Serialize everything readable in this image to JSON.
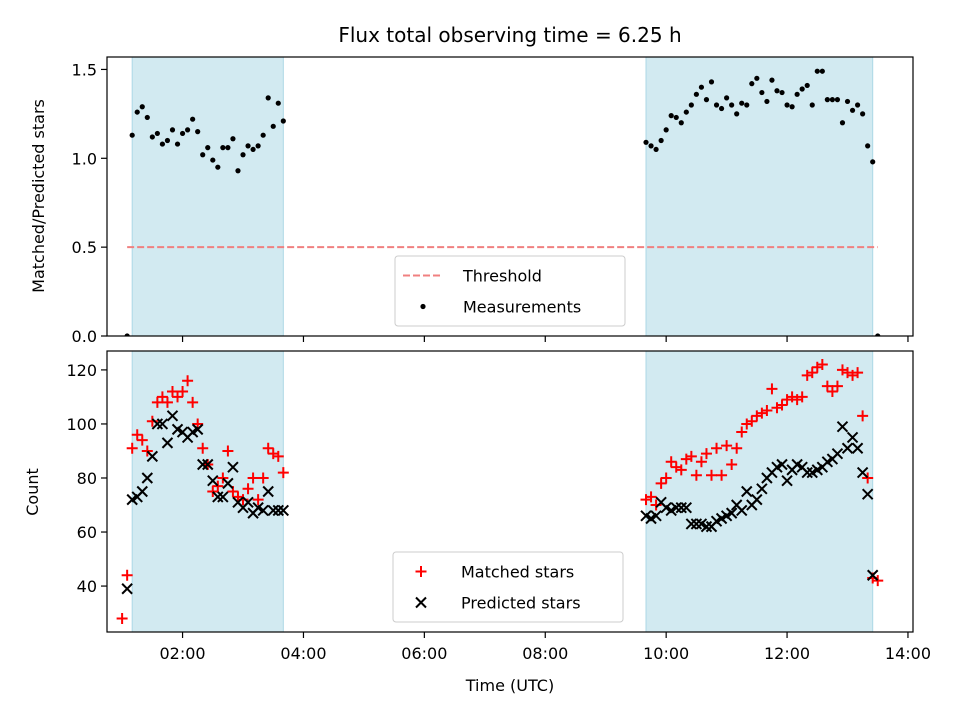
{
  "chart_data": {
    "type": "scatter",
    "title": "Flux total observing time = 6.25 h",
    "xlabel": "Time (UTC)",
    "x_ticks": [
      "02:00",
      "04:00",
      "06:00",
      "08:00",
      "10:00",
      "12:00",
      "14:00"
    ],
    "xlim": [
      "00:45",
      "14:05"
    ],
    "shaded_intervals": [
      [
        "01:10",
        "03:40"
      ],
      [
        "09:40",
        "13:25"
      ]
    ],
    "colors": {
      "shade": "#add8e6",
      "threshold": "#f08080",
      "matched": "#ff0000",
      "predicted": "#000000",
      "measurements": "#000000"
    },
    "panels": [
      {
        "ylabel": "Matched/Predicted stars",
        "ylim": [
          0,
          1.57
        ],
        "y_ticks": [
          "0.0",
          "0.5",
          "1.0",
          "1.5"
        ],
        "legend_position": "lower center",
        "threshold": {
          "name": "Threshold",
          "value": 0.5,
          "x_range": [
            "01:05",
            "13:30"
          ]
        },
        "series": [
          {
            "name": "Measurements",
            "marker": "dot",
            "x": [
              "01:05",
              "01:10",
              "01:15",
              "01:20",
              "01:25",
              "01:30",
              "01:35",
              "01:40",
              "01:45",
              "01:50",
              "01:55",
              "02:00",
              "02:05",
              "02:10",
              "02:15",
              "02:20",
              "02:25",
              "02:30",
              "02:35",
              "02:40",
              "02:45",
              "02:50",
              "02:55",
              "03:00",
              "03:05",
              "03:10",
              "03:15",
              "03:20",
              "03:25",
              "03:30",
              "03:35",
              "03:40",
              "09:40",
              "09:45",
              "09:50",
              "09:55",
              "10:00",
              "10:05",
              "10:10",
              "10:15",
              "10:20",
              "10:25",
              "10:30",
              "10:35",
              "10:40",
              "10:45",
              "10:50",
              "10:55",
              "11:00",
              "11:05",
              "11:10",
              "11:15",
              "11:20",
              "11:25",
              "11:30",
              "11:35",
              "11:40",
              "11:45",
              "11:50",
              "11:55",
              "12:00",
              "12:05",
              "12:10",
              "12:15",
              "12:20",
              "12:25",
              "12:30",
              "12:35",
              "12:40",
              "12:45",
              "12:50",
              "12:55",
              "13:00",
              "13:05",
              "13:10",
              "13:15",
              "13:20",
              "13:25",
              "13:30"
            ],
            "y": [
              0.0,
              1.13,
              1.26,
              1.29,
              1.23,
              1.12,
              1.14,
              1.08,
              1.1,
              1.16,
              1.08,
              1.14,
              1.16,
              1.22,
              1.15,
              1.02,
              1.06,
              0.99,
              0.95,
              1.06,
              1.06,
              1.11,
              0.93,
              1.02,
              1.07,
              1.05,
              1.07,
              1.13,
              1.34,
              1.18,
              1.31,
              1.21,
              1.09,
              1.07,
              1.05,
              1.1,
              1.16,
              1.24,
              1.23,
              1.2,
              1.26,
              1.3,
              1.36,
              1.4,
              1.33,
              1.43,
              1.3,
              1.28,
              1.34,
              1.3,
              1.25,
              1.31,
              1.3,
              1.42,
              1.45,
              1.37,
              1.32,
              1.44,
              1.38,
              1.37,
              1.3,
              1.29,
              1.36,
              1.39,
              1.41,
              1.3,
              1.49,
              1.49,
              1.33,
              1.33,
              1.33,
              1.2,
              1.32,
              1.27,
              1.3,
              1.25,
              1.07,
              0.98,
              0.0
            ]
          }
        ]
      },
      {
        "ylabel": "Count",
        "ylim": [
          23,
          127
        ],
        "y_ticks": [
          "40",
          "60",
          "80",
          "100",
          "120"
        ],
        "legend_position": "lower center",
        "series": [
          {
            "name": "Matched stars",
            "marker": "plus",
            "x": [
              "01:00",
              "01:05",
              "01:10",
              "01:15",
              "01:20",
              "01:25",
              "01:30",
              "01:35",
              "01:40",
              "01:45",
              "01:50",
              "01:55",
              "02:00",
              "02:05",
              "02:10",
              "02:15",
              "02:20",
              "02:25",
              "02:30",
              "02:35",
              "02:40",
              "02:45",
              "02:50",
              "02:55",
              "03:00",
              "03:05",
              "03:10",
              "03:15",
              "03:20",
              "03:25",
              "03:30",
              "03:35",
              "03:40",
              "09:40",
              "09:45",
              "09:50",
              "09:55",
              "10:00",
              "10:05",
              "10:10",
              "10:15",
              "10:20",
              "10:25",
              "10:30",
              "10:35",
              "10:40",
              "10:45",
              "10:50",
              "10:55",
              "11:00",
              "11:05",
              "11:10",
              "11:15",
              "11:20",
              "11:25",
              "11:30",
              "11:35",
              "11:40",
              "11:45",
              "11:50",
              "11:55",
              "12:00",
              "12:05",
              "12:10",
              "12:15",
              "12:20",
              "12:25",
              "12:30",
              "12:35",
              "12:40",
              "12:45",
              "12:50",
              "12:55",
              "13:00",
              "13:05",
              "13:10",
              "13:15",
              "13:20",
              "13:25",
              "13:30"
            ],
            "y": [
              28,
              44,
              91,
              96,
              94,
              90,
              101,
              108,
              110,
              108,
              112,
              110,
              112,
              116,
              108,
              100,
              91,
              85,
              75,
              77,
              80,
              90,
              75,
              73,
              72,
              76,
              80,
              72,
              80,
              91,
              89,
              88,
              82,
              72,
              73,
              70,
              78,
              80,
              86,
              84,
              83,
              87,
              88,
              81,
              86,
              89,
              81,
              91,
              81,
              92,
              85,
              91,
              97,
              100,
              101,
              103,
              104,
              105,
              113,
              106,
              107,
              109,
              110,
              109,
              110,
              118,
              119,
              121,
              122,
              114,
              112,
              114,
              120,
              119,
              118,
              119,
              103,
              80,
              43,
              42
            ]
          },
          {
            "name": "Predicted stars",
            "marker": "x",
            "x": [
              "01:05",
              "01:10",
              "01:15",
              "01:20",
              "01:25",
              "01:30",
              "01:35",
              "01:40",
              "01:45",
              "01:50",
              "01:55",
              "02:00",
              "02:05",
              "02:10",
              "02:15",
              "02:20",
              "02:25",
              "02:30",
              "02:35",
              "02:40",
              "02:45",
              "02:50",
              "02:55",
              "03:00",
              "03:05",
              "03:10",
              "03:15",
              "03:20",
              "03:25",
              "03:30",
              "03:35",
              "03:40",
              "09:40",
              "09:45",
              "09:50",
              "09:55",
              "10:00",
              "10:05",
              "10:10",
              "10:15",
              "10:20",
              "10:25",
              "10:30",
              "10:35",
              "10:40",
              "10:45",
              "10:50",
              "10:55",
              "11:00",
              "11:05",
              "11:10",
              "11:15",
              "11:20",
              "11:25",
              "11:30",
              "11:35",
              "11:40",
              "11:45",
              "11:50",
              "11:55",
              "12:00",
              "12:05",
              "12:10",
              "12:15",
              "12:20",
              "12:25",
              "12:30",
              "12:35",
              "12:40",
              "12:45",
              "12:50",
              "12:55",
              "13:00",
              "13:05",
              "13:10",
              "13:15",
              "13:20",
              "13:25"
            ],
            "y": [
              39,
              72,
              73,
              75,
              80,
              88,
              100,
              100,
              93,
              103,
              98,
              97,
              95,
              97,
              98,
              85,
              85,
              79,
              73,
              73,
              78,
              84,
              71,
              69,
              71,
              67,
              69,
              68,
              75,
              68,
              68,
              68,
              66,
              65,
              66,
              71,
              69,
              68,
              69,
              69,
              69,
              63,
              63,
              63,
              62,
              62,
              64,
              65,
              66,
              67,
              70,
              68,
              75,
              70,
              72,
              76,
              80,
              82,
              84,
              85,
              79,
              83,
              85,
              84,
              82,
              82,
              83,
              84,
              86,
              87,
              89,
              99,
              91,
              95,
              91,
              82,
              74,
              44
            ]
          }
        ]
      }
    ]
  }
}
